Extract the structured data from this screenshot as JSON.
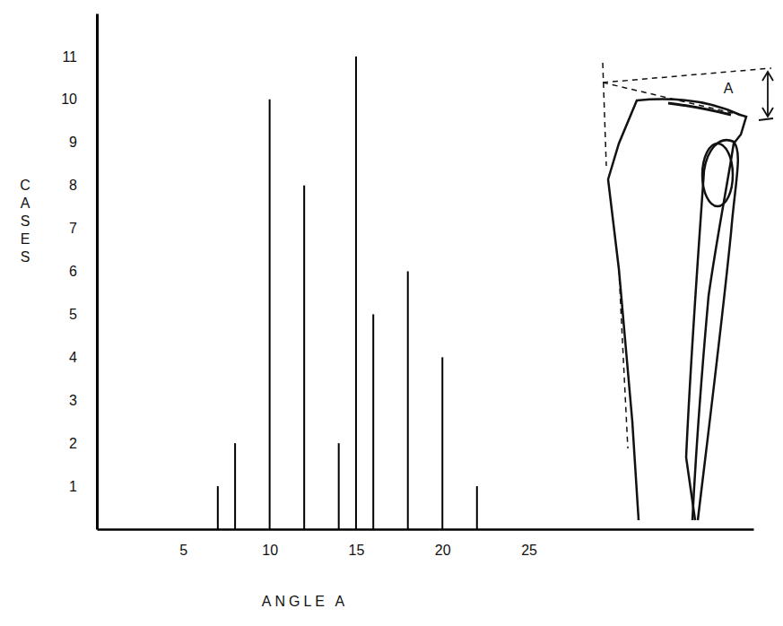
{
  "chart_data": {
    "type": "stem",
    "x_label": "ANGLE A",
    "y_label": "CASES",
    "x": [
      7,
      8,
      10,
      12,
      14,
      15,
      16,
      18,
      20,
      22
    ],
    "values": [
      1,
      2,
      10,
      8,
      2,
      11,
      5,
      6,
      4,
      1
    ],
    "color": "#000000",
    "xlim": [
      0,
      38
    ],
    "xticks": [
      5,
      10,
      15,
      20,
      25
    ],
    "ylim": [
      0,
      12
    ],
    "yticks": [
      1,
      2,
      3,
      4,
      5,
      6,
      7,
      8,
      9,
      10,
      11
    ],
    "grid": false,
    "annotations": [
      {
        "text": "A"
      }
    ]
  }
}
